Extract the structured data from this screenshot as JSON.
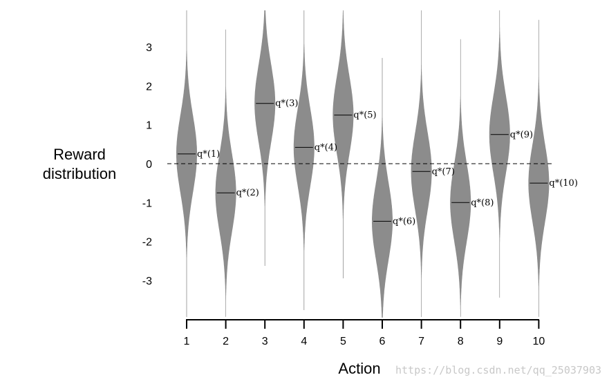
{
  "chart_data": {
    "type": "violin",
    "xlabel": "Action",
    "ylabel_lines": [
      "Reward",
      "distribution"
    ],
    "categories": [
      "1",
      "2",
      "3",
      "4",
      "5",
      "6",
      "7",
      "8",
      "9",
      "10"
    ],
    "means": [
      0.25,
      -0.75,
      1.55,
      0.42,
      1.25,
      -1.48,
      -0.2,
      -1.0,
      0.75,
      -0.5
    ],
    "mean_labels": [
      "q*(1)",
      "q*(2)",
      "q*(3)",
      "q*(4)",
      "q*(5)",
      "q*(6)",
      "q*(7)",
      "q*(8)",
      "q*(9)",
      "q*(10)"
    ],
    "yticks": [
      3,
      2,
      1,
      0,
      -1,
      -2,
      -3
    ],
    "ylim": [
      -4,
      4
    ],
    "zero_line": "dashed",
    "grid": false,
    "colors": {
      "violin": "#8c8c8c",
      "axis": "#000000",
      "watermark": "#c8c8c8"
    }
  },
  "watermark": "https://blog.csdn.net/qq_25037903"
}
